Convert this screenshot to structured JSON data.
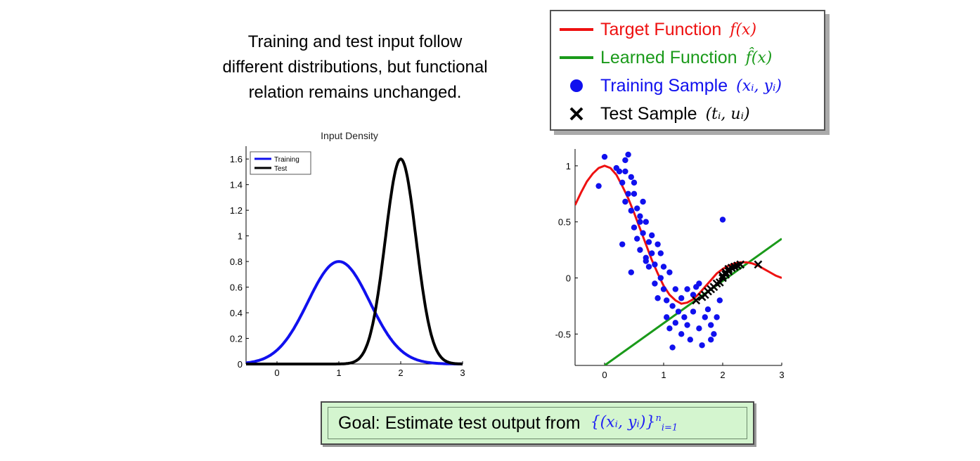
{
  "caption": {
    "line1": "Training and test input follow",
    "line2": "different distributions, but functional",
    "line3": "relation remains unchanged."
  },
  "legend": {
    "target_label": "Target Function",
    "target_math": "f(x)",
    "learned_label": "Learned Function",
    "learned_math": "f̂(x)",
    "training_label": "Training Sample",
    "training_math": "(xᵢ, yᵢ)",
    "test_label": "Test Sample",
    "test_math": "(tᵢ, uᵢ)",
    "colors": {
      "target": "#ee1111",
      "learned": "#1a9a1a",
      "training": "#1010ee",
      "test": "#000000"
    }
  },
  "goal": {
    "label": "Goal: Estimate test output from",
    "math": "{(xᵢ, yᵢ)}",
    "sub": "i=1",
    "sup": "n"
  },
  "chart_data": [
    {
      "type": "line",
      "title": "Input Density",
      "xlim": [
        -0.5,
        3
      ],
      "ylim": [
        0,
        1.7
      ],
      "xticks": [
        0,
        1,
        2,
        3
      ],
      "yticks": [
        0,
        0.2,
        0.4,
        0.6,
        0.8,
        1,
        1.2,
        1.4,
        1.6
      ],
      "legend_position": "top-left",
      "series": [
        {
          "name": "Training",
          "color": "#1010ee",
          "mean": 1,
          "sd": 0.5,
          "peak": 0.8
        },
        {
          "name": "Test",
          "color": "#000000",
          "mean": 2,
          "sd": 0.25,
          "peak": 1.6
        }
      ]
    },
    {
      "type": "scatter",
      "title": "",
      "xlim": [
        -0.5,
        3
      ],
      "ylim": [
        -0.78,
        1.15
      ],
      "xticks": [
        0,
        1,
        2,
        3
      ],
      "yticks": [
        -0.5,
        0,
        0.5,
        1
      ],
      "target_function": {
        "x": [
          -0.5,
          -0.4,
          -0.3,
          -0.2,
          -0.1,
          0,
          0.1,
          0.2,
          0.3,
          0.4,
          0.5,
          0.6,
          0.7,
          0.8,
          0.9,
          1.0,
          1.1,
          1.2,
          1.3,
          1.4,
          1.5,
          1.6,
          1.7,
          1.8,
          1.9,
          2.0,
          2.1,
          2.2,
          2.3,
          2.4,
          2.5,
          2.6,
          2.7,
          2.8,
          2.9,
          3.0
        ],
        "y": [
          0.65,
          0.76,
          0.86,
          0.93,
          0.98,
          1.0,
          0.98,
          0.92,
          0.82,
          0.71,
          0.58,
          0.44,
          0.3,
          0.16,
          0.04,
          -0.07,
          -0.15,
          -0.2,
          -0.23,
          -0.22,
          -0.19,
          -0.14,
          -0.08,
          -0.02,
          0.04,
          0.08,
          0.11,
          0.13,
          0.14,
          0.14,
          0.13,
          0.11,
          0.08,
          0.05,
          0.02,
          0.0
        ]
      },
      "learned_function": {
        "x": [
          0,
          3
        ],
        "y": [
          -0.78,
          0.35
        ]
      },
      "training_points": {
        "x": [
          -0.1,
          0.0,
          0.2,
          0.25,
          0.3,
          0.35,
          0.35,
          0.4,
          0.4,
          0.45,
          0.45,
          0.5,
          0.5,
          0.55,
          0.55,
          0.6,
          0.6,
          0.65,
          0.65,
          0.7,
          0.7,
          0.75,
          0.75,
          0.8,
          0.8,
          0.85,
          0.85,
          0.9,
          0.9,
          0.95,
          0.95,
          1.0,
          1.0,
          1.05,
          1.05,
          1.1,
          1.1,
          1.15,
          1.15,
          1.2,
          1.2,
          1.25,
          1.3,
          1.3,
          1.35,
          1.4,
          1.4,
          1.45,
          1.5,
          1.5,
          1.55,
          1.6,
          1.65,
          1.7,
          1.75,
          1.8,
          1.85,
          1.9,
          1.95,
          2.0,
          0.35,
          0.5,
          0.6,
          1.6,
          1.8,
          0.3,
          0.45,
          0.7
        ],
        "y": [
          0.82,
          1.08,
          0.98,
          0.95,
          0.85,
          1.05,
          0.68,
          1.1,
          0.75,
          0.9,
          0.6,
          0.75,
          0.45,
          0.62,
          0.35,
          0.5,
          0.25,
          0.68,
          0.4,
          0.5,
          0.15,
          0.32,
          0.1,
          0.22,
          0.38,
          0.12,
          -0.05,
          0.3,
          -0.18,
          0.0,
          0.22,
          -0.1,
          0.1,
          -0.2,
          -0.35,
          0.05,
          -0.45,
          -0.62,
          -0.25,
          -0.1,
          -0.4,
          -0.3,
          -0.18,
          -0.5,
          -0.35,
          -0.1,
          -0.42,
          -0.55,
          -0.3,
          -0.15,
          -0.08,
          -0.45,
          -0.6,
          -0.35,
          -0.28,
          -0.55,
          -0.5,
          -0.35,
          -0.2,
          0.52,
          0.95,
          0.85,
          0.55,
          -0.05,
          -0.42,
          0.3,
          0.05,
          0.18
        ]
      },
      "test_points": {
        "x": [
          1.55,
          1.65,
          1.7,
          1.75,
          1.8,
          1.85,
          1.9,
          1.95,
          2.0,
          2.0,
          2.05,
          2.05,
          2.1,
          2.1,
          2.15,
          2.2,
          2.25,
          2.3,
          2.6
        ],
        "y": [
          -0.2,
          -0.17,
          -0.15,
          -0.12,
          -0.1,
          -0.08,
          -0.05,
          -0.04,
          0.0,
          0.02,
          0.03,
          0.05,
          0.06,
          0.08,
          0.09,
          0.1,
          0.11,
          0.12,
          0.12
        ]
      }
    }
  ]
}
